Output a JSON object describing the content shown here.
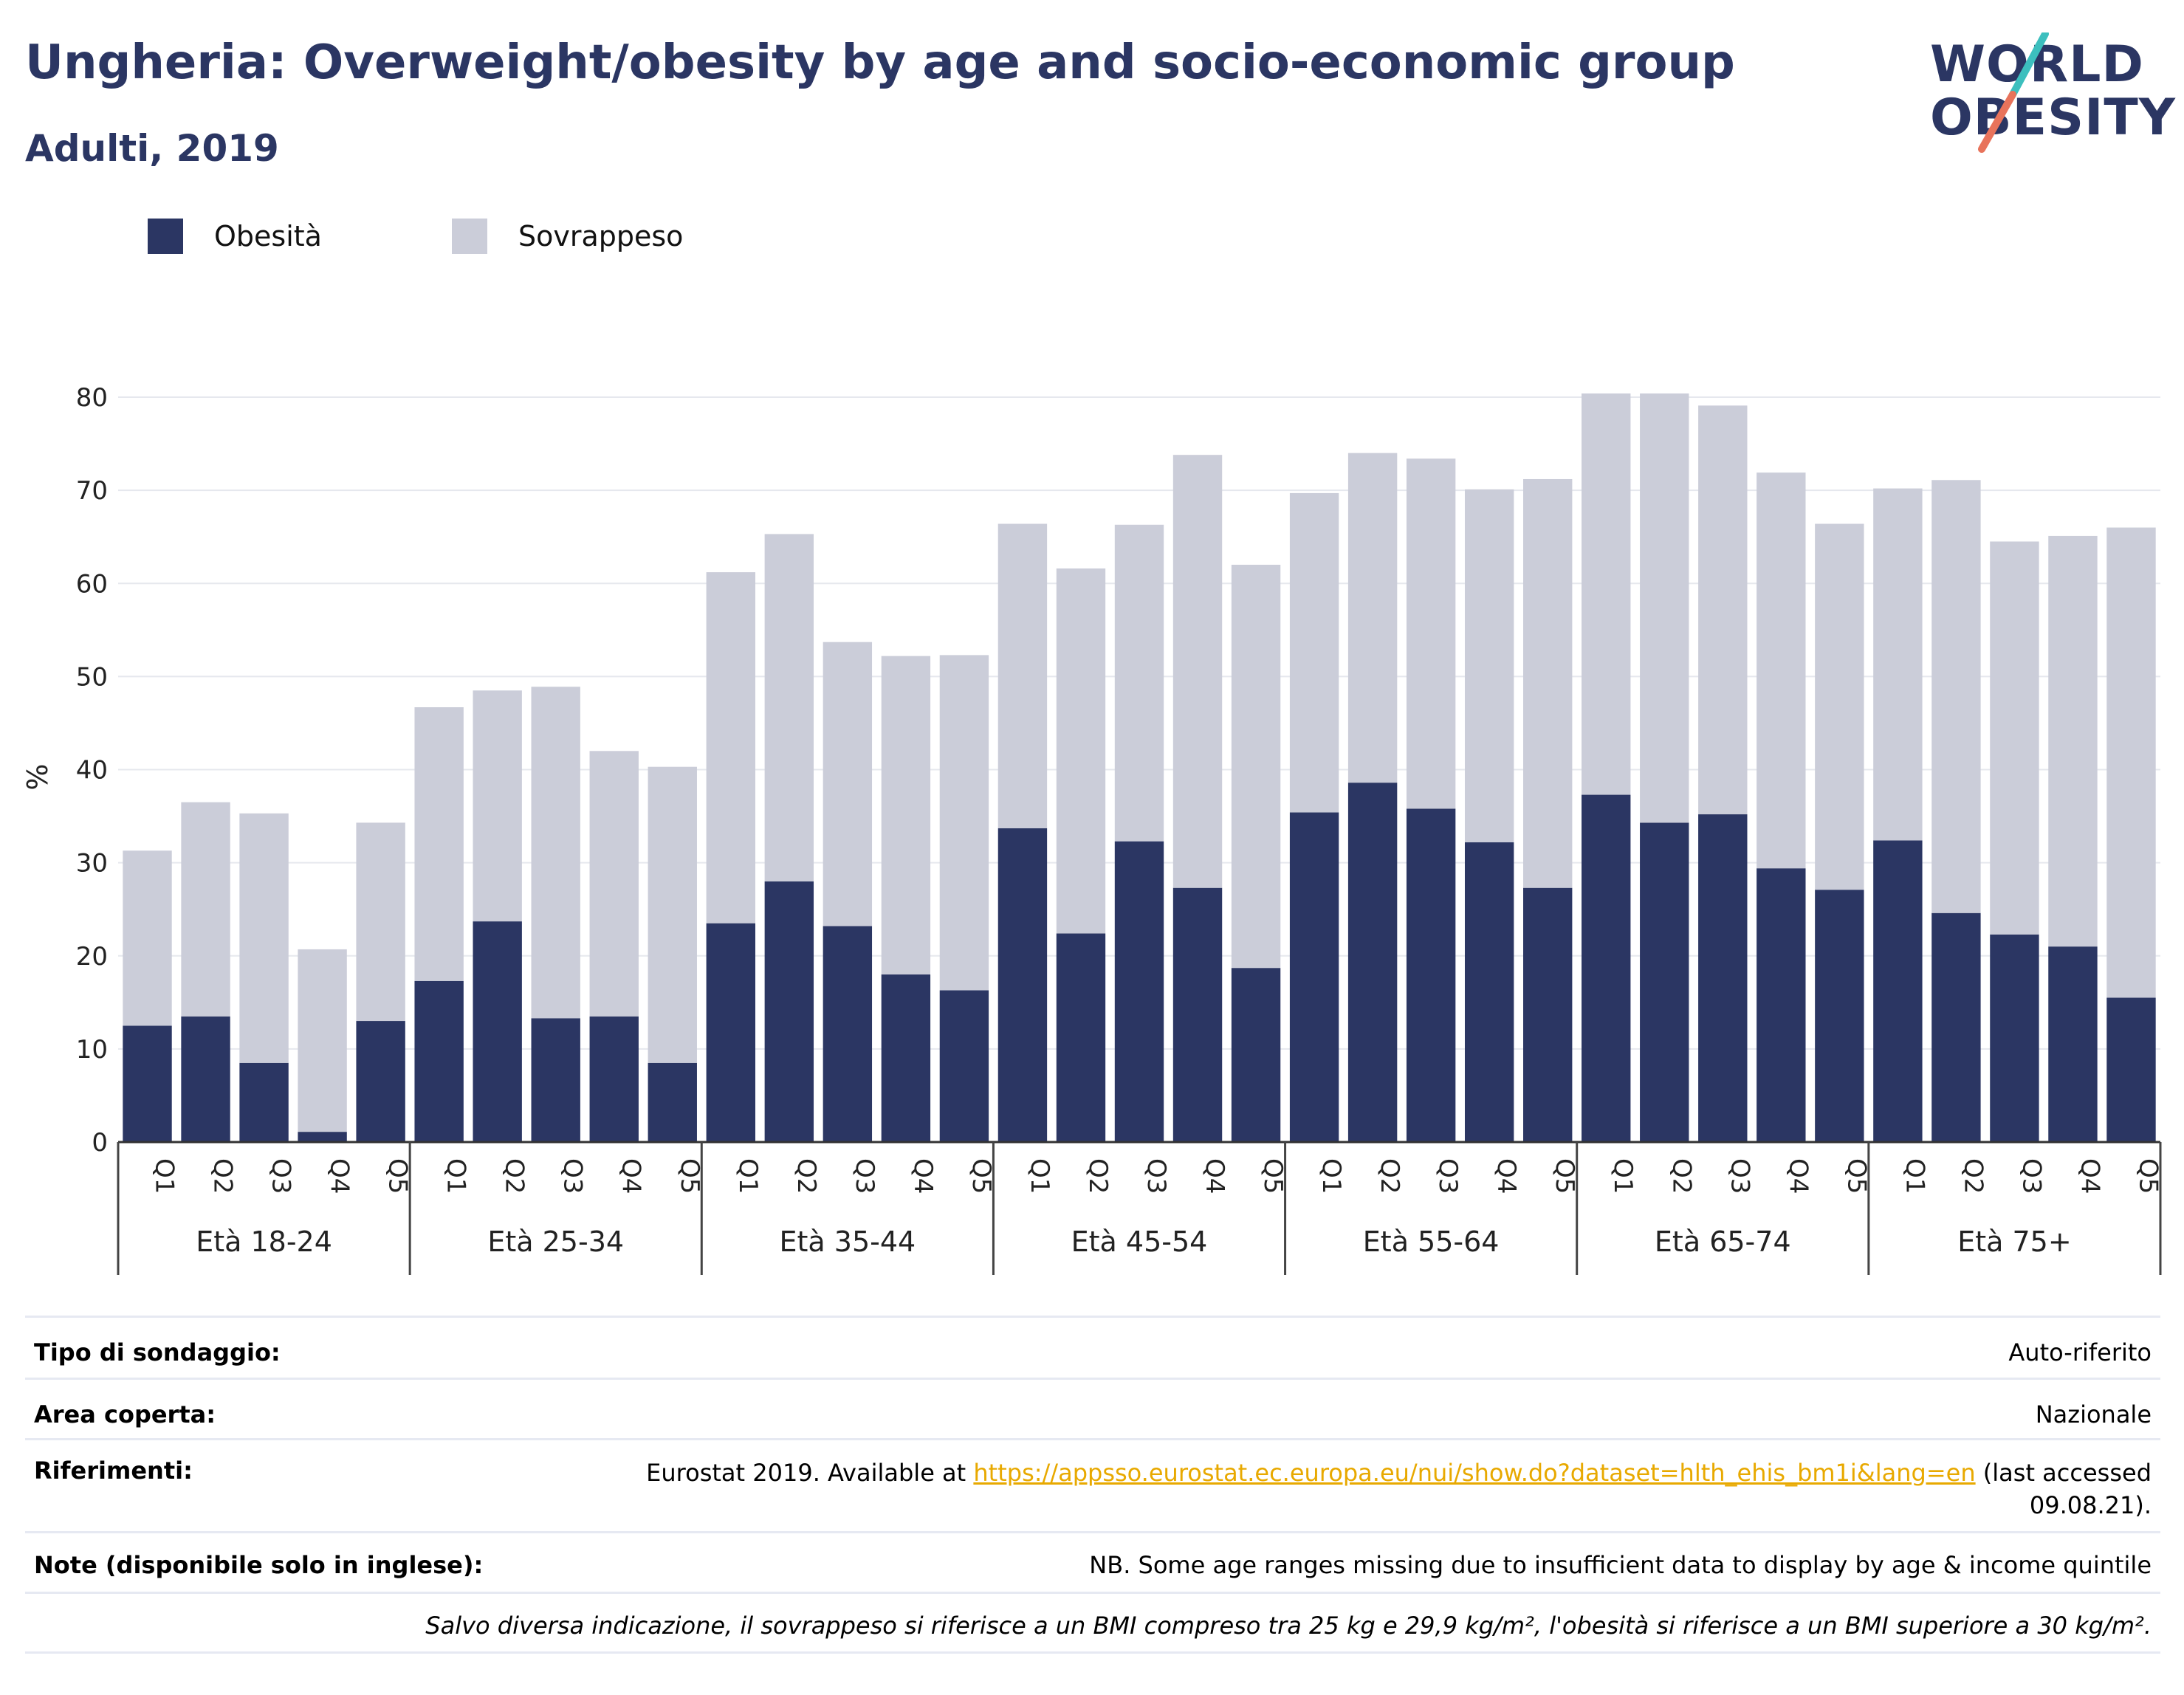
{
  "header": {
    "title": "Ungheria: Overweight/obesity by age and socio-economic group",
    "subtitle": "Adulti, 2019",
    "logo_line1": "WORLD",
    "logo_line2": "OBESITY"
  },
  "colors": {
    "obesity": "#2b3663",
    "overweight": "#cbcdd9",
    "title": "#2b3663",
    "logo_teal": "#3cbfbe",
    "logo_coral": "#e8735b",
    "link": "#e8a900"
  },
  "legend": [
    {
      "label": "Obesità",
      "color": "#2b3663"
    },
    {
      "label": "Sovrappeso",
      "color": "#cbcdd9"
    }
  ],
  "chart_data": {
    "type": "bar",
    "stacked": true,
    "ylabel": "%",
    "ylim": [
      0,
      80
    ],
    "yticks": [
      0,
      10,
      20,
      30,
      40,
      50,
      60,
      70,
      80
    ],
    "grid": true,
    "legend_position": "top-left",
    "groups": [
      "Età 18-24",
      "Età 25-34",
      "Età 35-44",
      "Età 45-54",
      "Età 55-64",
      "Età 65-74",
      "Età 75+"
    ],
    "categories": [
      "Q1",
      "Q2",
      "Q3",
      "Q4",
      "Q5"
    ],
    "series": [
      {
        "name": "Obesità",
        "values": [
          [
            12.5,
            13.5,
            8.5,
            1.1,
            13.0
          ],
          [
            17.3,
            23.7,
            13.3,
            13.5,
            8.5
          ],
          [
            23.5,
            28.0,
            23.2,
            18.0,
            16.3
          ],
          [
            33.7,
            22.4,
            32.3,
            27.3,
            18.7
          ],
          [
            35.4,
            38.6,
            35.8,
            32.2,
            27.3
          ],
          [
            37.3,
            34.3,
            35.2,
            29.4,
            27.1
          ],
          [
            32.4,
            24.6,
            22.3,
            21.0,
            15.5
          ]
        ]
      },
      {
        "name": "Sovrappeso",
        "values": [
          [
            18.8,
            23.0,
            26.8,
            19.6,
            21.3
          ],
          [
            29.4,
            24.8,
            35.6,
            28.5,
            31.8
          ],
          [
            37.7,
            37.3,
            30.5,
            34.2,
            36.0
          ],
          [
            32.7,
            39.2,
            34.0,
            46.5,
            43.3
          ],
          [
            34.3,
            35.4,
            37.6,
            37.9,
            43.9
          ],
          [
            43.1,
            46.1,
            43.9,
            42.5,
            39.3
          ],
          [
            37.8,
            46.5,
            42.2,
            44.1,
            50.5
          ]
        ]
      }
    ]
  },
  "info": {
    "survey_type_label": "Tipo di sondaggio:",
    "survey_type_value": "Auto-riferito",
    "area_label": "Area coperta:",
    "area_value": "Nazionale",
    "references_label": "Riferimenti:",
    "references_prefix": "Eurostat 2019. Available at ",
    "references_link": "https://appsso.eurostat.ec.europa.eu/nui/show.do?dataset=hlth_ehis_bm1i&lang=en",
    "references_suffix": " (last accessed",
    "references_date": "09.08.21).",
    "notes_label": "Note (disponibile solo in inglese):",
    "notes_value": "NB. Some age ranges missing due to insufficient data to display by age & income quintile",
    "footnote": "Salvo diversa indicazione, il sovrappeso si riferisce a un BMI compreso tra 25 kg e 29,9 kg/m², l'obesità si riferisce a un BMI superiore a 30 kg/m²."
  }
}
